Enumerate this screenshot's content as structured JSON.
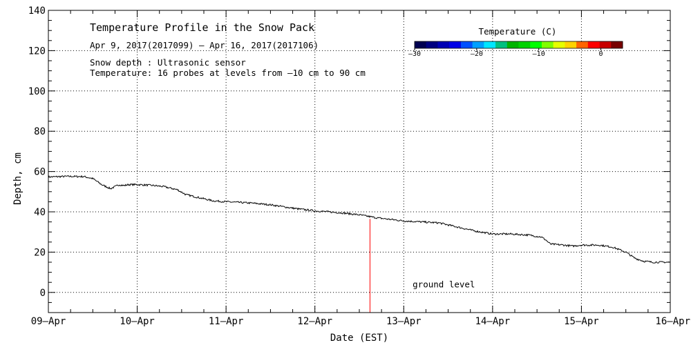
{
  "chart_data": {
    "type": "line",
    "title": "Temperature Profile in the Snow Pack",
    "subtitle": "Apr  9, 2017(2017099) – Apr 16, 2017(2017106)",
    "notes": [
      "Snow depth : Ultrasonic sensor",
      "Temperature: 16 probes at levels from –10 cm to 90 cm"
    ],
    "xlabel": "Date (EST)",
    "ylabel": "Depth, cm",
    "xlim": [
      0,
      7
    ],
    "ylim": [
      -10,
      140
    ],
    "grid": true,
    "x_tick_labels": [
      "09–Apr",
      "10–Apr",
      "11–Apr",
      "12–Apr",
      "13–Apr",
      "14–Apr",
      "15–Apr",
      "16–Apr"
    ],
    "y_ticks": [
      0,
      20,
      40,
      60,
      80,
      100,
      120,
      140
    ],
    "series": [
      {
        "x": [
          0.0,
          0.2,
          0.4,
          0.5,
          0.6,
          0.7,
          0.8,
          0.85,
          0.9,
          1.0,
          1.1,
          1.2,
          1.3,
          1.45,
          1.55,
          1.7,
          1.85,
          2.0,
          2.3,
          2.5,
          2.8,
          3.0,
          3.3,
          3.5,
          3.7,
          4.0,
          4.2,
          4.4,
          4.6,
          4.8,
          5.0,
          5.2,
          5.4,
          5.55,
          5.6,
          5.65,
          5.8,
          5.9,
          6.0,
          6.2,
          6.35,
          6.5,
          6.6,
          6.7,
          6.8,
          7.0
        ],
        "values": [
          57.3,
          57.6,
          57.5,
          56.5,
          53.5,
          51.5,
          53.5,
          53.0,
          53.5,
          53.5,
          53.3,
          53.0,
          52.5,
          51.0,
          48.5,
          47.0,
          45.5,
          45.0,
          44.3,
          43.5,
          41.5,
          40.5,
          39.5,
          38.5,
          37.0,
          35.5,
          35.0,
          34.5,
          32.5,
          30.5,
          29.0,
          29.0,
          28.5,
          27.5,
          26.0,
          24.0,
          23.5,
          23.0,
          23.5,
          23.5,
          22.5,
          20.0,
          17.0,
          15.5,
          15.0,
          15.0
        ]
      }
    ],
    "markers": [
      {
        "type": "vertical_line",
        "x": 3.62,
        "from": -10,
        "to": 36.5,
        "color": "#ff0000"
      }
    ],
    "annotations": [
      {
        "text": "ground level",
        "x": 4.1,
        "y": 2.5
      }
    ],
    "colorbar": {
      "title": "Temperature (C)",
      "range": [
        -30,
        3.5
      ],
      "tick_values": [
        -30,
        -20,
        -10,
        0
      ],
      "tick_labels": [
        "–30",
        "–20",
        "–10",
        "0"
      ],
      "colors": [
        "#000050",
        "#000080",
        "#0000b4",
        "#0000e6",
        "#0050ff",
        "#00a0ff",
        "#00e6ff",
        "#00c080",
        "#00b400",
        "#00d200",
        "#00ff00",
        "#80ff00",
        "#e6ff00",
        "#ffd200",
        "#ff6400",
        "#ff0000",
        "#c80000",
        "#780000"
      ]
    }
  }
}
